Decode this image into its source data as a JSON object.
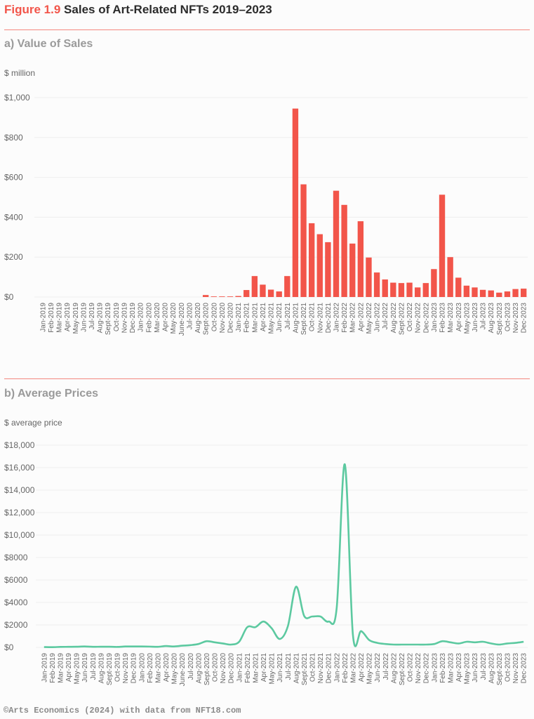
{
  "figure_label": "Figure 1.9",
  "figure_title": "Sales of Art-Related NFTs 2019–2023",
  "footer": "©Arts Economics (2024) with data from NFT18.com",
  "colors": {
    "bar": "#f2554a",
    "line": "#5cc9a0",
    "rule": "#f4877f"
  },
  "chart_data": [
    {
      "type": "bar",
      "title": "a) Value of Sales",
      "ylabel": "$ million",
      "ylim": [
        0,
        1000
      ],
      "yticks": [
        0,
        200,
        400,
        600,
        800,
        1000
      ],
      "ytick_labels": [
        "$0",
        "$200",
        "$400",
        "$600",
        "$800",
        "$1,000"
      ],
      "grid": true,
      "categories": [
        "Jan-2019",
        "Feb-2019",
        "Mar-2019",
        "Apr-2019",
        "May-2019",
        "Jun-2019",
        "Jul-2019",
        "Aug-2019",
        "Sept-2019",
        "Oct-2019",
        "Nov-2019",
        "Dec-2019",
        "Jan-2020",
        "Feb-2020",
        "Mar-2020",
        "Apr-2020",
        "May-2020",
        "June-2020",
        "Jul-2020",
        "Aug-2020",
        "Sept-2020",
        "Oct-2020",
        "Nov-2020",
        "Dec-2020",
        "Jan-2021",
        "Feb-2021",
        "Mar-2021",
        "Apr-2021",
        "May-2021",
        "Jun-2021",
        "Jul-2021",
        "Aug-2021",
        "Sept-2021",
        "Oct-2021",
        "Nov-2021",
        "Dec-2021",
        "Jan-2022",
        "Feb-2022",
        "Mar-2022",
        "Apr-2022",
        "May-2022",
        "Jun-2022",
        "Jul-2022",
        "Aug-2022",
        "Sept-2022",
        "Oct-2022",
        "Nov-2022",
        "Dec-2022",
        "Jan-2023",
        "Feb-2023",
        "Mar-2023",
        "Apr-2023",
        "May-2023",
        "Jun-2023",
        "Jul-2023",
        "Aug-2023",
        "Sept-2023",
        "Oct-2023",
        "Nov-2023",
        "Dec-2023"
      ],
      "values": [
        0,
        0,
        0,
        0,
        0,
        0,
        0,
        0,
        0,
        0,
        0,
        0,
        0,
        0,
        0,
        0,
        0,
        0,
        0,
        0,
        10,
        3,
        3,
        3,
        5,
        35,
        105,
        62,
        37,
        28,
        105,
        945,
        565,
        370,
        315,
        275,
        533,
        462,
        268,
        380,
        198,
        123,
        88,
        72,
        70,
        72,
        48,
        70,
        140,
        513,
        200,
        97,
        57,
        48,
        36,
        33,
        22,
        28,
        40,
        42
      ]
    },
    {
      "type": "line",
      "title": "b) Average Prices",
      "ylabel": "$ average price",
      "ylim": [
        0,
        18000
      ],
      "yticks": [
        0,
        2000,
        4000,
        6000,
        8000,
        10000,
        12000,
        14000,
        16000,
        18000
      ],
      "ytick_labels": [
        "$0",
        "$2000",
        "$4000",
        "$6000",
        "$8000",
        "$10,000",
        "$12,000",
        "$14,000",
        "$16,000",
        "$18,000"
      ],
      "grid": true,
      "categories": [
        "Jan-2019",
        "Feb-2019",
        "Mar-2019",
        "Apr-2019",
        "May-2019",
        "Jun-2019",
        "Jul-2019",
        "Aug-2019",
        "Sept-2019",
        "Oct-2019",
        "Nov-2019",
        "Dec-2019",
        "Jan-2020",
        "Feb-2020",
        "Mar-2020",
        "Apr-2020",
        "May-2020",
        "June-2020",
        "Jul-2020",
        "Aug-2020",
        "Sept-2020",
        "Oct-2020",
        "Nov-2020",
        "Dec-2020",
        "Jan-2021",
        "Feb-2021",
        "Mar-2021",
        "Apr-2021",
        "May-2021",
        "Jun-2021",
        "Jul-2021",
        "Aug-2021",
        "Sept-2021",
        "Oct-2021",
        "Nov-2021",
        "Dec-2021",
        "Jan-2022",
        "Feb-2022",
        "Mar-2022",
        "Apr-2022",
        "May-2022",
        "Jun-2022",
        "Jul-2022",
        "Aug-2022",
        "Sept-2022",
        "Oct-2022",
        "Nov-2022",
        "Dec-2022",
        "Jan-2023",
        "Feb-2023",
        "Mar-2023",
        "Apr-2023",
        "May-2023",
        "Jun-2023",
        "Jul-2023",
        "Aug-2023",
        "Sept-2023",
        "Oct-2023",
        "Nov-2023",
        "Dec-2023"
      ],
      "values": [
        30,
        20,
        40,
        50,
        60,
        80,
        50,
        60,
        60,
        40,
        80,
        80,
        80,
        70,
        50,
        120,
        80,
        150,
        200,
        300,
        550,
        450,
        350,
        250,
        500,
        1800,
        1800,
        2300,
        1700,
        750,
        1900,
        5400,
        2800,
        2750,
        2750,
        2300,
        3500,
        16300,
        1100,
        1450,
        650,
        400,
        300,
        250,
        250,
        250,
        250,
        250,
        300,
        550,
        450,
        350,
        500,
        450,
        500,
        350,
        250,
        350,
        400,
        500
      ]
    }
  ]
}
